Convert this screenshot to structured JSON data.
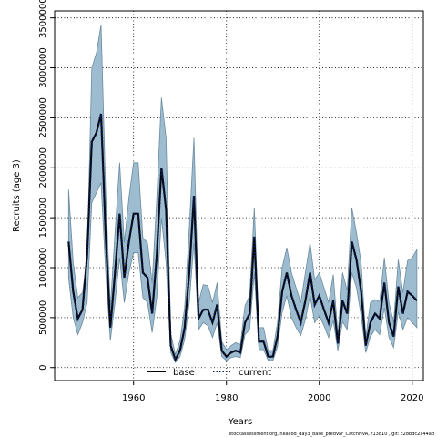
{
  "chart_data": {
    "type": "line",
    "xlabel": "Years",
    "ylabel": "Recruits (age 3)",
    "footer": "stockassessment.org, neacod_day3_base_predVar_CatchNVA, r13810 , git: c28bdc2a44ad",
    "x": [
      1946,
      1947,
      1948,
      1949,
      1950,
      1951,
      1952,
      1953,
      1954,
      1955,
      1956,
      1957,
      1958,
      1959,
      1960,
      1961,
      1962,
      1963,
      1964,
      1965,
      1966,
      1967,
      1968,
      1969,
      1970,
      1971,
      1972,
      1973,
      1974,
      1975,
      1976,
      1977,
      1978,
      1979,
      1980,
      1981,
      1982,
      1983,
      1984,
      1985,
      1986,
      1987,
      1988,
      1989,
      1990,
      1991,
      1992,
      1993,
      1994,
      1995,
      1996,
      1997,
      1998,
      1999,
      2000,
      2001,
      2002,
      2003,
      2004,
      2005,
      2006,
      2007,
      2008,
      2009,
      2010,
      2011,
      2012,
      2013,
      2014,
      2015,
      2016,
      2017,
      2018,
      2019,
      2020,
      2021
    ],
    "series": [
      {
        "name": "base",
        "color": "#000000",
        "dash": "solid",
        "values": [
          1260000,
          760000,
          490000,
          580000,
          1130000,
          2260000,
          2350000,
          2540000,
          1310000,
          400000,
          950000,
          1540000,
          900000,
          1260000,
          1540000,
          1540000,
          950000,
          900000,
          540000,
          1130000,
          2000000,
          1580000,
          220000,
          80000,
          170000,
          400000,
          950000,
          1720000,
          490000,
          580000,
          580000,
          450000,
          630000,
          170000,
          110000,
          150000,
          170000,
          150000,
          450000,
          540000,
          1310000,
          260000,
          260000,
          110000,
          110000,
          310000,
          760000,
          950000,
          720000,
          580000,
          450000,
          670000,
          950000,
          630000,
          720000,
          580000,
          450000,
          670000,
          240000,
          670000,
          540000,
          1260000,
          1080000,
          760000,
          220000,
          450000,
          540000,
          490000,
          850000,
          450000,
          310000,
          810000,
          540000,
          760000,
          720000,
          670000
        ]
      },
      {
        "name": "current",
        "color": "#0b1a4a",
        "dash": "dotted",
        "values": [
          1260000,
          760000,
          490000,
          580000,
          1130000,
          2260000,
          2350000,
          2540000,
          1310000,
          400000,
          950000,
          1540000,
          900000,
          1260000,
          1540000,
          1540000,
          950000,
          900000,
          540000,
          1130000,
          2000000,
          1580000,
          220000,
          80000,
          170000,
          400000,
          950000,
          1720000,
          490000,
          580000,
          580000,
          450000,
          630000,
          170000,
          110000,
          150000,
          170000,
          150000,
          450000,
          540000,
          1310000,
          260000,
          260000,
          110000,
          110000,
          310000,
          760000,
          950000,
          720000,
          580000,
          450000,
          670000,
          950000,
          630000,
          720000,
          580000,
          450000,
          670000,
          240000,
          670000,
          540000,
          1260000,
          1080000,
          760000,
          220000,
          450000,
          540000,
          490000,
          850000,
          450000,
          310000,
          810000,
          540000,
          760000,
          720000,
          670000
        ]
      }
    ],
    "band": {
      "color": "#9dbccf",
      "edge": "#6a8ba0",
      "lower": [
        900000,
        500000,
        330000,
        450000,
        650000,
        1650000,
        1750000,
        1850000,
        950000,
        270000,
        650000,
        1100000,
        650000,
        950000,
        1150000,
        1150000,
        700000,
        650000,
        350000,
        700000,
        1500000,
        1050000,
        150000,
        50000,
        110000,
        280000,
        650000,
        1250000,
        380000,
        450000,
        420000,
        300000,
        450000,
        110000,
        70000,
        100000,
        110000,
        100000,
        330000,
        380000,
        950000,
        180000,
        180000,
        70000,
        70000,
        210000,
        550000,
        720000,
        500000,
        400000,
        320000,
        480000,
        720000,
        450000,
        520000,
        420000,
        300000,
        470000,
        170000,
        460000,
        380000,
        950000,
        800000,
        520000,
        150000,
        310000,
        380000,
        330000,
        600000,
        300000,
        200000,
        560000,
        380000,
        500000,
        450000,
        400000
      ],
      "upper": [
        1780000,
        1050000,
        700000,
        750000,
        1100000,
        3000000,
        3150000,
        3430000,
        1750000,
        600000,
        1350000,
        2050000,
        1250000,
        1700000,
        2050000,
        2050000,
        1300000,
        1250000,
        850000,
        1700000,
        2700000,
        2300000,
        340000,
        130000,
        270000,
        600000,
        1400000,
        2300000,
        650000,
        830000,
        820000,
        650000,
        850000,
        260000,
        180000,
        220000,
        250000,
        230000,
        620000,
        720000,
        1600000,
        400000,
        400000,
        170000,
        170000,
        450000,
        1000000,
        1200000,
        950000,
        800000,
        650000,
        950000,
        1250000,
        880000,
        950000,
        800000,
        650000,
        930000,
        330000,
        950000,
        770000,
        1600000,
        1350000,
        1050000,
        300000,
        650000,
        680000,
        660000,
        1100000,
        650000,
        450000,
        1080000,
        750000,
        1070000,
        1100000,
        1180000
      ]
    },
    "xlim": [
      1943,
      2022.4
    ],
    "ylim": [
      -130000,
      3570000
    ],
    "xticks": [
      1960,
      1980,
      2000,
      2020
    ],
    "yticks": [
      0,
      500000,
      1000000,
      1500000,
      2000000,
      2500000,
      3000000,
      3500000
    ],
    "grid": true,
    "legend": "bottom"
  }
}
